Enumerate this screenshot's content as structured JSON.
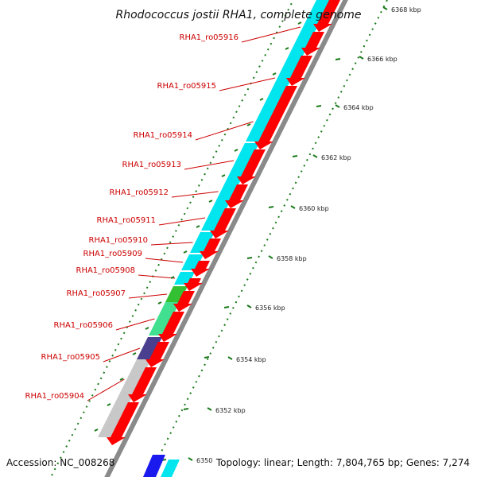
{
  "title": "Rhodococcus jostii RHA1, complete genome",
  "accession": "Accession: NC_008268",
  "summary": "Topology: linear; Length: 7,804,765 bp; Genes: 7,274",
  "colors": {
    "label": "#cc0000",
    "ticks": "#1a7a1a",
    "backbone": "#8a8a8a",
    "forward_arrows": "#ff0000"
  },
  "genes": [
    {
      "label": "RHA1_ro05916",
      "color": "#00e5ee"
    },
    {
      "label": "RHA1_ro05915",
      "color": "#00e5ee"
    },
    {
      "label": "RHA1_ro05914",
      "color": "#00e5ee"
    },
    {
      "label": "RHA1_ro05913",
      "color": "#00e5ee"
    },
    {
      "label": "RHA1_ro05912",
      "color": "#00e5ee"
    },
    {
      "label": "RHA1_ro05911",
      "color": "#00e5ee"
    },
    {
      "label": "RHA1_ro05910",
      "color": "#00e5ee"
    },
    {
      "label": "RHA1_ro05909",
      "color": "#00e5ee"
    },
    {
      "label": "RHA1_ro05908",
      "color": "#00e5ee"
    },
    {
      "label": "RHA1_ro05907",
      "color": "#33c033"
    },
    {
      "label": "RHA1_ro05906",
      "color": "#40e090"
    },
    {
      "label": "RHA1_ro05905",
      "color": "#4a3f8f"
    },
    {
      "label": "RHA1_ro05904",
      "color": "#c8c8c8"
    }
  ],
  "ticks": [
    "6368 kbp",
    "6366 kbp",
    "6364 kbp",
    "6362 kbp",
    "6360 kbp",
    "6358 kbp",
    "6356 kbp",
    "6354 kbp",
    "6352 kbp",
    "6350"
  ]
}
